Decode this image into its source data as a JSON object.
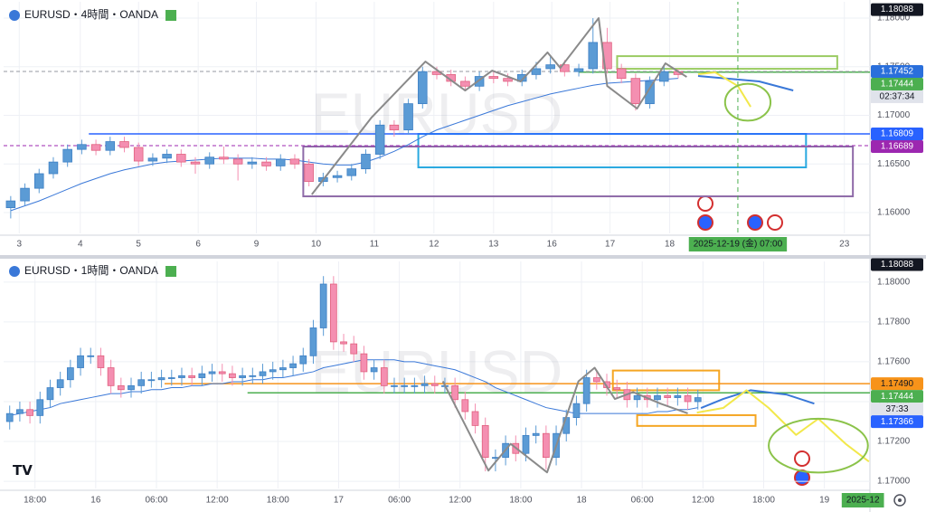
{
  "chart_data": [
    {
      "type": "candlestick",
      "title": "EURUSD・4時間・OANDA",
      "watermark": "EURUSD",
      "up_color": "#5b9bd5",
      "down_color": "#f48fb1",
      "grid": true,
      "xlim": [
        -0.5,
        60.5
      ],
      "ylim": [
        1.15786,
        1.1814
      ],
      "yticks": [
        {
          "value": 1.16,
          "label": "1.16000"
        },
        {
          "value": 1.165,
          "label": "1.16500"
        },
        {
          "value": 1.17,
          "label": "1.17000"
        },
        {
          "value": 1.175,
          "label": "1.17500"
        },
        {
          "value": 1.18,
          "label": "1.18000"
        }
      ],
      "xticks": [
        {
          "value": 0.6,
          "label": "3"
        },
        {
          "value": 4.9,
          "label": "4"
        },
        {
          "value": 9.0,
          "label": "5"
        },
        {
          "value": 13.2,
          "label": "6"
        },
        {
          "value": 17.3,
          "label": "9"
        },
        {
          "value": 21.5,
          "label": "10"
        },
        {
          "value": 25.6,
          "label": "11"
        },
        {
          "value": 29.8,
          "label": "12"
        },
        {
          "value": 34.0,
          "label": "13"
        },
        {
          "value": 38.1,
          "label": "16"
        },
        {
          "value": 42.2,
          "label": "17"
        },
        {
          "value": 46.4,
          "label": "18"
        },
        {
          "value": 58.7,
          "label": "23"
        }
      ],
      "date_marker": {
        "value": 51.2,
        "label": "2025-12-19 (金)   07:00",
        "line": true
      },
      "open": [
        1.1605,
        1.1612,
        1.1625,
        1.164,
        1.1652,
        1.1665,
        1.167,
        1.1664,
        1.1673,
        1.1667,
        1.1653,
        1.1656,
        1.166,
        1.1652,
        1.165,
        1.1657,
        1.1655,
        1.165,
        1.1652,
        1.1648,
        1.1655,
        1.165,
        1.1632,
        1.1636,
        1.1638,
        1.1645,
        1.166,
        1.169,
        1.1685,
        1.1712,
        1.1745,
        1.1742,
        1.1735,
        1.173,
        1.174,
        1.1738,
        1.1735,
        1.1742,
        1.1748,
        1.1752,
        1.1745,
        1.1748,
        1.1775,
        1.1748,
        1.1738,
        1.1712,
        1.1735,
        1.1745
      ],
      "high": [
        1.1617,
        1.163,
        1.1645,
        1.1657,
        1.167,
        1.1675,
        1.1675,
        1.1678,
        1.1678,
        1.1672,
        1.1661,
        1.1665,
        1.1665,
        1.1657,
        1.1662,
        1.1668,
        1.166,
        1.1657,
        1.1657,
        1.166,
        1.166,
        1.1655,
        1.1641,
        1.1643,
        1.165,
        1.1665,
        1.1695,
        1.1695,
        1.1717,
        1.175,
        1.175,
        1.1747,
        1.174,
        1.1745,
        1.1745,
        1.1743,
        1.1747,
        1.1755,
        1.176,
        1.1757,
        1.1753,
        1.18,
        1.179,
        1.1753,
        1.1743,
        1.174,
        1.1752,
        1.1748
      ],
      "low": [
        1.1594,
        1.1607,
        1.162,
        1.1635,
        1.1647,
        1.166,
        1.1659,
        1.1659,
        1.1662,
        1.1648,
        1.1648,
        1.1651,
        1.1647,
        1.164,
        1.1645,
        1.165,
        1.1633,
        1.1645,
        1.1643,
        1.1643,
        1.1645,
        1.1627,
        1.1627,
        1.1631,
        1.1633,
        1.164,
        1.1655,
        1.1678,
        1.168,
        1.1707,
        1.1737,
        1.173,
        1.1725,
        1.1725,
        1.1733,
        1.173,
        1.173,
        1.1737,
        1.1743,
        1.174,
        1.174,
        1.1743,
        1.1743,
        1.1733,
        1.1705,
        1.1707,
        1.173,
        1.1738
      ],
      "close": [
        1.1612,
        1.1625,
        1.164,
        1.1652,
        1.1665,
        1.167,
        1.1664,
        1.1673,
        1.1667,
        1.1653,
        1.1656,
        1.166,
        1.1652,
        1.165,
        1.1657,
        1.1655,
        1.165,
        1.1652,
        1.1648,
        1.1655,
        1.165,
        1.1632,
        1.1636,
        1.1638,
        1.1645,
        1.166,
        1.169,
        1.1685,
        1.1712,
        1.1745,
        1.1742,
        1.1735,
        1.173,
        1.174,
        1.1738,
        1.1735,
        1.1742,
        1.1748,
        1.1752,
        1.1745,
        1.1748,
        1.1775,
        1.1748,
        1.1738,
        1.1712,
        1.1735,
        1.1745,
        1.1742
      ],
      "ma": {
        "color": "#3a78d8",
        "values": [
          1.1602,
          1.1607,
          1.1612,
          1.1618,
          1.1624,
          1.163,
          1.1635,
          1.164,
          1.1644,
          1.1647,
          1.165,
          1.1652,
          1.1653,
          1.1654,
          1.1655,
          1.1656,
          1.1656,
          1.1656,
          1.1655,
          1.1655,
          1.1654,
          1.1652,
          1.165,
          1.1649,
          1.1649,
          1.1652,
          1.1657,
          1.1663,
          1.167,
          1.1678,
          1.1685,
          1.169,
          1.1695,
          1.17,
          1.1705,
          1.171,
          1.1714,
          1.1718,
          1.1722,
          1.1725,
          1.1728,
          1.1731,
          1.1733,
          1.1734,
          1.1735,
          1.1736,
          1.1737,
          1.1738
        ]
      },
      "boxes": [
        {
          "x": [
            28.7,
            56.0
          ],
          "y": [
            1.16465,
            1.16809
          ],
          "color": "#29a9e0"
        },
        {
          "x": [
            20.6,
            59.3
          ],
          "y": [
            1.16167,
            1.16679
          ],
          "color": "#8e6aa8"
        },
        {
          "x": [
            42.7,
            58.2
          ],
          "y": [
            1.17479,
            1.17609
          ],
          "color": "#9ccc65"
        }
      ],
      "levels": [
        {
          "value": 1.16809,
          "from": 5.5,
          "color": "#2962ff",
          "dash": false
        },
        {
          "value": 1.16689,
          "from": -0.5,
          "color": "#9c27b0",
          "dash": true
        },
        {
          "value": 1.17444,
          "from": 40,
          "color": "#4caf50",
          "dash": false
        },
        {
          "value": 1.17452,
          "from": -0.5,
          "color": "#9598a1",
          "dash": true
        }
      ],
      "lines": [
        {
          "color": "#8a8a8a",
          "x": [
            21.2,
            25.4,
            29.2,
            32.0,
            33.9,
            35.9,
            37.8,
            38.7,
            41.4,
            42.0,
            44.1,
            46.1,
            47.6
          ],
          "y": [
            1.16186,
            1.16977,
            1.17553,
            1.17256,
            1.1746,
            1.17349,
            1.17647,
            1.17488,
            1.18,
            1.17302,
            1.1707,
            1.17535,
            1.17395
          ]
        },
        {
          "color": "#3a78d8",
          "x": [
            48.4,
            52.7,
            55.1
          ],
          "y": [
            1.17405,
            1.17349,
            1.17256
          ]
        },
        {
          "color": "#f2e84b",
          "x": [
            48.4,
            49.6,
            51.2,
            52.1
          ],
          "y": [
            1.17423,
            1.17442,
            1.17302,
            1.17088
          ]
        }
      ],
      "ellipses": [
        {
          "cx": 51.9,
          "cy": 1.17135,
          "rx": 1.6,
          "ry": 0.0019,
          "color": "#8bc34a"
        }
      ],
      "price_tags": [
        {
          "value": 1.18088,
          "label": "1.18088",
          "color": "#131722",
          "text_color": "#ffffff"
        },
        {
          "value": 1.17452,
          "label": "1.17452",
          "color": "#2a6fdb",
          "text_color": "#ffffff"
        },
        {
          "value": 1.17444,
          "label": "1.17444",
          "color": "#4caf50",
          "text_color": "#ffffff",
          "countdown": "02:37:34"
        },
        {
          "value": 1.16809,
          "label": "1.16809",
          "color": "#2962ff",
          "text_color": "#ffffff"
        },
        {
          "value": 1.16689,
          "label": "1.16689",
          "color": "#9c27b0",
          "text_color": "#ffffff"
        }
      ]
    },
    {
      "type": "candlestick",
      "title": "EURUSD・1時間・OANDA",
      "watermark": "EURUSD",
      "up_color": "#5b9bd5",
      "down_color": "#f48fb1",
      "grid": true,
      "xlim": [
        -0.6,
        85
      ],
      "ylim": [
        1.16964,
        1.1809
      ],
      "yticks": [
        {
          "value": 1.17,
          "label": "1.17000"
        },
        {
          "value": 1.172,
          "label": "1.17200"
        },
        {
          "value": 1.174,
          "label": "1.17400"
        },
        {
          "value": 1.176,
          "label": "1.17600"
        },
        {
          "value": 1.178,
          "label": "1.17800"
        },
        {
          "value": 1.18,
          "label": "1.18000"
        }
      ],
      "xticks": [
        {
          "value": 2.5,
          "label": "18:00"
        },
        {
          "value": 8.5,
          "label": "16"
        },
        {
          "value": 14.5,
          "label": "06:00"
        },
        {
          "value": 20.5,
          "label": "12:00"
        },
        {
          "value": 26.5,
          "label": "18:00"
        },
        {
          "value": 32.5,
          "label": "17"
        },
        {
          "value": 38.5,
          "label": "06:00"
        },
        {
          "value": 44.5,
          "label": "12:00"
        },
        {
          "value": 50.5,
          "label": "18:00"
        },
        {
          "value": 56.5,
          "label": "18"
        },
        {
          "value": 62.5,
          "label": "06:00"
        },
        {
          "value": 68.5,
          "label": "12:00"
        },
        {
          "value": 74.5,
          "label": "18:00"
        },
        {
          "value": 80.5,
          "label": "19"
        }
      ],
      "date_marker": {
        "value": 84.3,
        "label": "2025-12",
        "line": false
      },
      "open": [
        1.173,
        1.1734,
        1.1736,
        1.1733,
        1.1741,
        1.1747,
        1.1751,
        1.1757,
        1.1763,
        1.1763,
        1.1757,
        1.1748,
        1.1746,
        1.1748,
        1.1751,
        1.1751,
        1.1752,
        1.1752,
        1.1753,
        1.1752,
        1.1754,
        1.1755,
        1.1754,
        1.1752,
        1.1753,
        1.1753,
        1.1755,
        1.1756,
        1.1757,
        1.1759,
        1.1763,
        1.1777,
        1.1799,
        1.177,
        1.1769,
        1.1764,
        1.1755,
        1.1757,
        1.1748,
        1.1748,
        1.1748,
        1.1748,
        1.1749,
        1.1748,
        1.1748,
        1.1741,
        1.1735,
        1.1728,
        1.1712,
        1.1712,
        1.1719,
        1.1714,
        1.1723,
        1.1724,
        1.1712,
        1.1724,
        1.1732,
        1.1739,
        1.1752,
        1.175,
        1.1747,
        1.1746,
        1.1741,
        1.1743,
        1.1741,
        1.1743,
        1.1742,
        1.1743,
        1.174
      ],
      "high": [
        1.1738,
        1.174,
        1.174,
        1.1745,
        1.1751,
        1.1755,
        1.1761,
        1.1767,
        1.1767,
        1.1767,
        1.1761,
        1.1752,
        1.1752,
        1.1755,
        1.1755,
        1.1756,
        1.1756,
        1.1757,
        1.1757,
        1.1758,
        1.1759,
        1.1759,
        1.1758,
        1.1757,
        1.1757,
        1.1759,
        1.176,
        1.1761,
        1.1763,
        1.1767,
        1.1781,
        1.1803,
        1.1803,
        1.1774,
        1.1773,
        1.1768,
        1.1761,
        1.1761,
        1.1752,
        1.1752,
        1.1752,
        1.1753,
        1.1753,
        1.1752,
        1.1752,
        1.1745,
        1.1739,
        1.1732,
        1.1716,
        1.1723,
        1.1723,
        1.1727,
        1.1728,
        1.1728,
        1.1728,
        1.1736,
        1.1743,
        1.1756,
        1.1756,
        1.1754,
        1.1751,
        1.175,
        1.1747,
        1.1747,
        1.1747,
        1.1747,
        1.1747,
        1.1747,
        1.1746
      ],
      "low": [
        1.1726,
        1.173,
        1.1729,
        1.1729,
        1.1737,
        1.1743,
        1.1747,
        1.1753,
        1.1759,
        1.1753,
        1.1744,
        1.1742,
        1.1742,
        1.1744,
        1.1747,
        1.1747,
        1.1748,
        1.1748,
        1.1748,
        1.1748,
        1.175,
        1.175,
        1.1748,
        1.1748,
        1.1749,
        1.1749,
        1.1751,
        1.1752,
        1.1753,
        1.1755,
        1.1759,
        1.1773,
        1.1766,
        1.1765,
        1.176,
        1.1751,
        1.1751,
        1.1744,
        1.1744,
        1.1744,
        1.1744,
        1.1744,
        1.1744,
        1.1744,
        1.1737,
        1.1731,
        1.1724,
        1.1705,
        1.1705,
        1.1708,
        1.171,
        1.171,
        1.1719,
        1.1706,
        1.1708,
        1.172,
        1.1728,
        1.1735,
        1.1746,
        1.1743,
        1.1742,
        1.1737,
        1.1737,
        1.1737,
        1.1737,
        1.1738,
        1.1738,
        1.1736,
        1.1736
      ],
      "close": [
        1.1734,
        1.1736,
        1.1733,
        1.1741,
        1.1747,
        1.1751,
        1.1757,
        1.1763,
        1.1763,
        1.1757,
        1.1748,
        1.1746,
        1.1748,
        1.1751,
        1.1751,
        1.1752,
        1.1752,
        1.1753,
        1.1752,
        1.1754,
        1.1755,
        1.1754,
        1.1752,
        1.1753,
        1.1753,
        1.1755,
        1.1756,
        1.1757,
        1.1759,
        1.1763,
        1.1777,
        1.1799,
        1.177,
        1.1769,
        1.1764,
        1.1755,
        1.1757,
        1.1748,
        1.1748,
        1.1748,
        1.1748,
        1.1749,
        1.1748,
        1.1748,
        1.1741,
        1.1735,
        1.1728,
        1.1712,
        1.1712,
        1.1719,
        1.1714,
        1.1723,
        1.1724,
        1.1712,
        1.1724,
        1.1732,
        1.1739,
        1.1752,
        1.175,
        1.1747,
        1.1746,
        1.1741,
        1.1743,
        1.1741,
        1.1743,
        1.1742,
        1.1743,
        1.174,
        1.1742
      ],
      "ma": {
        "color": "#3a78d8",
        "values": [
          1.1733,
          1.1734,
          1.1735,
          1.1736,
          1.1737,
          1.1739,
          1.174,
          1.1741,
          1.1742,
          1.1743,
          1.1744,
          1.1744,
          1.1745,
          1.1745,
          1.1746,
          1.1746,
          1.1747,
          1.1747,
          1.1748,
          1.1748,
          1.1749,
          1.1749,
          1.175,
          1.175,
          1.1751,
          1.1751,
          1.1752,
          1.1752,
          1.1753,
          1.1754,
          1.1755,
          1.1757,
          1.1758,
          1.1759,
          1.176,
          1.1761,
          1.1761,
          1.1761,
          1.1761,
          1.176,
          1.176,
          1.1759,
          1.1758,
          1.1757,
          1.1756,
          1.1754,
          1.1752,
          1.175,
          1.1747,
          1.1745,
          1.1743,
          1.1741,
          1.1739,
          1.1737,
          1.1736,
          1.1735,
          1.1734,
          1.1734,
          1.1734,
          1.1734,
          1.1734,
          1.1734,
          1.1734,
          1.1734,
          1.1735,
          1.1735,
          1.1736,
          1.1736,
          1.1737
        ]
      },
      "boxes": [
        {
          "x": [
            59.6,
            70.1
          ],
          "y": [
            1.17457,
            1.17556
          ],
          "color": "#f5a623"
        },
        {
          "x": [
            62.0,
            73.7
          ],
          "y": [
            1.17278,
            1.17332
          ],
          "color": "#f5a623"
        }
      ],
      "levels": [
        {
          "value": 1.1749,
          "from": 15.3,
          "color": "#f7931a",
          "dash": false
        },
        {
          "value": 1.17444,
          "from": 23.5,
          "color": "#4caf50",
          "dash": false
        }
      ],
      "lines": [
        {
          "color": "#8a8a8a",
          "x": [
            42.8,
            47.3,
            49.5,
            53.1,
            56.2,
            57.8,
            59.8,
            61.6,
            64.3,
            67.0
          ],
          "y": [
            1.17502,
            1.17054,
            1.17188,
            1.17045,
            1.17502,
            1.1757,
            1.17413,
            1.17448,
            1.1739,
            1.17341
          ]
        },
        {
          "color": "#3a78d8",
          "x": [
            68.3,
            70.5,
            73.2,
            76.8,
            79.5
          ],
          "y": [
            1.17368,
            1.17413,
            1.17457,
            1.17435,
            1.1739
          ]
        },
        {
          "color": "#f2e84b",
          "x": [
            67.9,
            70.5,
            72.8,
            75.0,
            77.7,
            79.9,
            82.6,
            84.9
          ],
          "y": [
            1.17345,
            1.17368,
            1.17457,
            1.17368,
            1.17233,
            1.17314,
            1.17188,
            1.17099
          ]
        }
      ],
      "ellipses": [
        {
          "cx": 79.9,
          "cy": 1.17179,
          "rx": 4.9,
          "ry": 0.00135,
          "color": "#8bc34a"
        }
      ],
      "price_tags": [
        {
          "value": 1.18088,
          "label": "1.18088",
          "color": "#131722",
          "text_color": "#ffffff"
        },
        {
          "value": 1.1749,
          "label": "1.17490",
          "color": "#f7931a",
          "text_color": "#131722"
        },
        {
          "value": 1.17444,
          "label": "1.17444",
          "color": "#4caf50",
          "text_color": "#ffffff",
          "countdown": "37:33"
        },
        {
          "value": 1.17366,
          "label": "1.17366",
          "color": "#2962ff",
          "text_color": "#ffffff"
        }
      ]
    }
  ]
}
